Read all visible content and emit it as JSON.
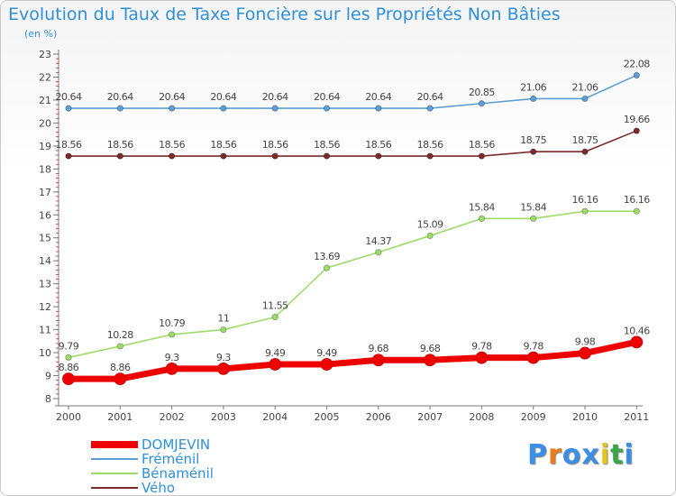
{
  "title": "Evolution du Taux de Taxe Foncière sur les Propriétés Non Bâties",
  "subtitle": "(en %)",
  "logo": {
    "letters": [
      "P",
      "r",
      "o",
      "x",
      "i",
      "t",
      "i"
    ],
    "colors": [
      "#3a8ee6",
      "#e87d1e",
      "#3a8ee6",
      "#3a8ee6",
      "#e6c21e",
      "#3aa64a",
      "#3a8ee6"
    ]
  },
  "chart_data": {
    "type": "line",
    "categories": [
      "2000",
      "2001",
      "2002",
      "2003",
      "2004",
      "2005",
      "2006",
      "2007",
      "2008",
      "2009",
      "2010",
      "2011"
    ],
    "ylim": [
      8,
      23
    ],
    "yticks": [
      "8",
      "9",
      "10",
      "11",
      "12",
      "13",
      "14",
      "15",
      "16",
      "17",
      "18",
      "19",
      "20",
      "21",
      "22",
      "23"
    ],
    "grid": false,
    "legend_position": "bottom-left",
    "series": [
      {
        "name": "Fréménil",
        "color": "#5c9fd6",
        "values": [
          20.64,
          20.64,
          20.64,
          20.64,
          20.64,
          20.64,
          20.64,
          20.64,
          20.85,
          21.06,
          21.06,
          22.08
        ],
        "labels": [
          "20.64",
          "20.64",
          "20.64",
          "20.64",
          "20.64",
          "20.64",
          "20.64",
          "20.64",
          "20.85",
          "21.06",
          "21.06",
          "22.08"
        ]
      },
      {
        "name": "Bénaménil",
        "color": "#9ddc6a",
        "values": [
          9.79,
          10.28,
          10.79,
          11,
          11.55,
          13.69,
          14.37,
          15.09,
          15.84,
          15.84,
          16.16,
          16.16
        ],
        "labels": [
          "9.79",
          "10.28",
          "10.79",
          "11",
          "11.55",
          "13.69",
          "14.37",
          "15.09",
          "15.84",
          "15.84",
          "16.16",
          "16.16"
        ]
      },
      {
        "name": "Vého",
        "color": "#7a2b2b",
        "values": [
          18.56,
          18.56,
          18.56,
          18.56,
          18.56,
          18.56,
          18.56,
          18.56,
          18.56,
          18.75,
          18.75,
          19.66
        ],
        "labels": [
          "18.56",
          "18.56",
          "18.56",
          "18.56",
          "18.56",
          "18.56",
          "18.56",
          "18.56",
          "18.56",
          "18.75",
          "18.75",
          "19.66"
        ]
      },
      {
        "name": "DOMJEVIN",
        "color": "#ee0000",
        "values": [
          8.86,
          8.86,
          9.3,
          9.3,
          9.49,
          9.49,
          9.68,
          9.68,
          9.78,
          9.78,
          9.98,
          10.46
        ],
        "labels": [
          "8.86",
          "8.86",
          "9.3",
          "9.3",
          "9.49",
          "9.49",
          "9.68",
          "9.68",
          "9.78",
          "9.78",
          "9.98",
          "10.46"
        ]
      }
    ],
    "legend": [
      {
        "name": "DOMJEVIN",
        "color": "#ee0000"
      },
      {
        "name": "Fréménil",
        "color": "#5c9fd6"
      },
      {
        "name": "Bénaménil",
        "color": "#9ddc6a"
      },
      {
        "name": "Vého",
        "color": "#7a2b2b"
      }
    ]
  }
}
